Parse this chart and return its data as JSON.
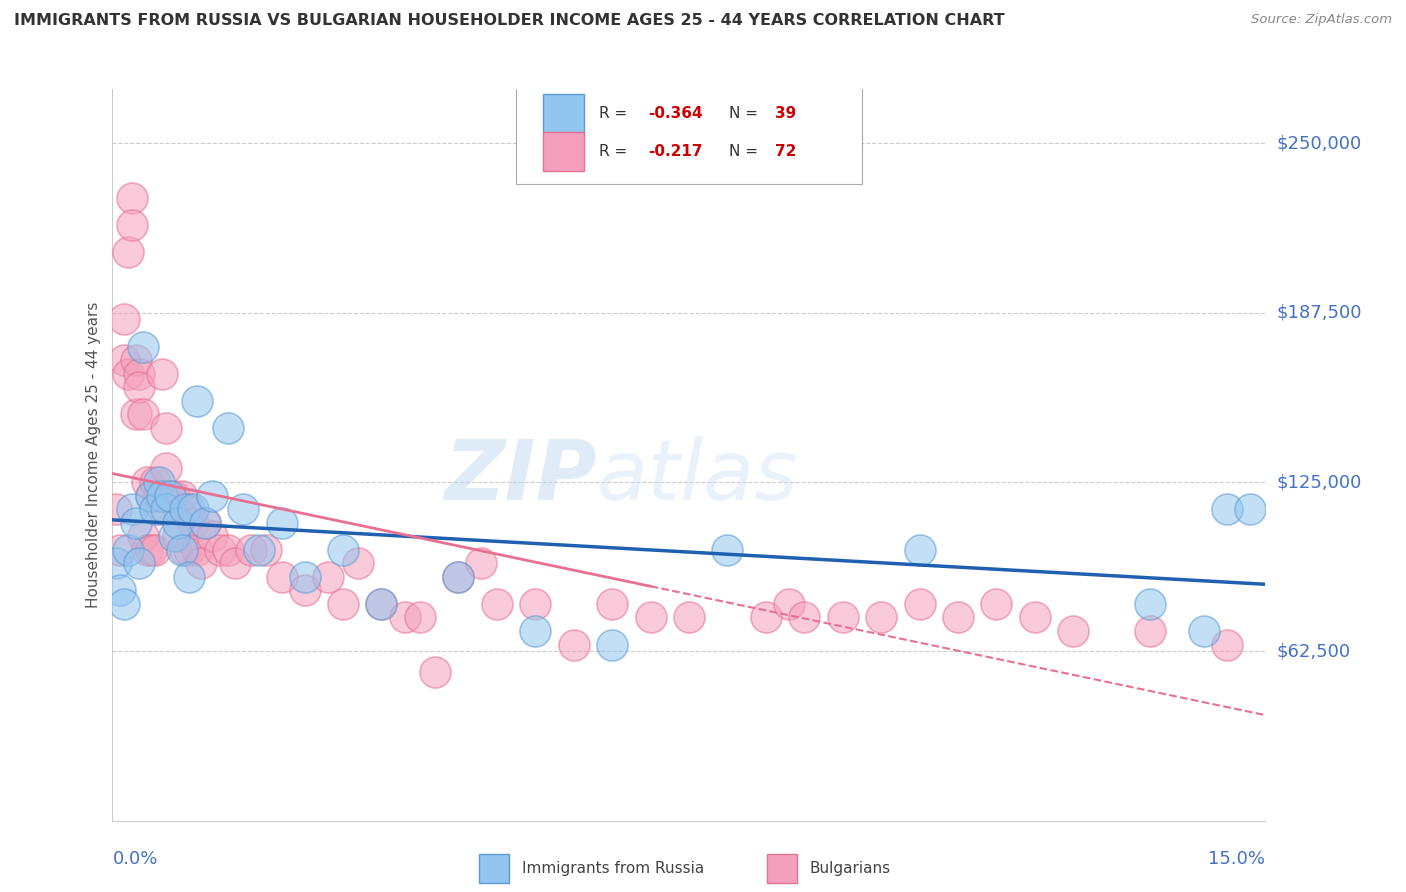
{
  "title": "IMMIGRANTS FROM RUSSIA VS BULGARIAN HOUSEHOLDER INCOME AGES 25 - 44 YEARS CORRELATION CHART",
  "source": "Source: ZipAtlas.com",
  "ylabel": "Householder Income Ages 25 - 44 years",
  "xlim": [
    0.0,
    15.0
  ],
  "ylim": [
    0,
    270000
  ],
  "yticks": [
    62500,
    125000,
    187500,
    250000
  ],
  "ytick_labels": [
    "$62,500",
    "$125,000",
    "$187,500",
    "$250,000"
  ],
  "watermark_zip": "ZIP",
  "watermark_atlas": "atlas",
  "legend_r1": "R = ",
  "legend_v1": "-0.364",
  "legend_n1_label": "N = ",
  "legend_n1": "39",
  "legend_r2": "R = ",
  "legend_v2": "-0.217",
  "legend_n2_label": "N = ",
  "legend_n2": "72",
  "color_russia": "#92C5F0",
  "color_bulgarian": "#F4A0BC",
  "color_russia_edge": "#5B9BD5",
  "color_bulgarian_edge": "#E87090",
  "color_russia_line": "#2060B0",
  "color_bulgarian_line": "#E87090",
  "background_color": "#FFFFFF",
  "grid_color": "#CCCCCC",
  "axis_color": "#4472C4",
  "title_color": "#333333",
  "source_color": "#888888",
  "russia_x": [
    0.05,
    0.1,
    0.15,
    0.2,
    0.25,
    0.3,
    0.35,
    0.4,
    0.5,
    0.55,
    0.6,
    0.65,
    0.7,
    0.75,
    0.8,
    0.85,
    0.9,
    0.95,
    1.0,
    1.05,
    1.1,
    1.2,
    1.3,
    1.5,
    1.7,
    1.9,
    2.2,
    2.5,
    3.0,
    3.5,
    4.5,
    5.5,
    6.5,
    8.0,
    10.5,
    13.5,
    14.2,
    14.5,
    14.8
  ],
  "russia_y": [
    95000,
    85000,
    80000,
    100000,
    115000,
    110000,
    95000,
    175000,
    120000,
    115000,
    125000,
    120000,
    115000,
    120000,
    105000,
    110000,
    100000,
    115000,
    90000,
    115000,
    155000,
    110000,
    120000,
    145000,
    115000,
    100000,
    110000,
    90000,
    100000,
    80000,
    90000,
    70000,
    65000,
    100000,
    100000,
    80000,
    70000,
    115000,
    115000
  ],
  "bulgarian_x": [
    0.05,
    0.1,
    0.15,
    0.15,
    0.2,
    0.2,
    0.25,
    0.25,
    0.3,
    0.3,
    0.35,
    0.35,
    0.4,
    0.4,
    0.45,
    0.45,
    0.5,
    0.5,
    0.55,
    0.55,
    0.6,
    0.6,
    0.65,
    0.7,
    0.7,
    0.75,
    0.8,
    0.85,
    0.85,
    0.9,
    0.95,
    1.0,
    1.0,
    1.05,
    1.1,
    1.15,
    1.2,
    1.3,
    1.4,
    1.5,
    1.6,
    1.8,
    2.0,
    2.2,
    2.5,
    2.8,
    3.0,
    3.2,
    3.5,
    3.8,
    4.0,
    4.2,
    4.5,
    4.8,
    5.0,
    5.5,
    6.0,
    6.5,
    7.0,
    7.5,
    8.5,
    8.8,
    9.0,
    9.5,
    10.0,
    10.5,
    11.0,
    11.5,
    12.0,
    12.5,
    13.5,
    14.5
  ],
  "bulgarian_y": [
    115000,
    100000,
    185000,
    170000,
    165000,
    210000,
    230000,
    220000,
    170000,
    150000,
    165000,
    160000,
    150000,
    105000,
    125000,
    100000,
    120000,
    100000,
    125000,
    100000,
    120000,
    115000,
    165000,
    145000,
    130000,
    120000,
    120000,
    115000,
    105000,
    120000,
    100000,
    115000,
    100000,
    110000,
    100000,
    95000,
    110000,
    105000,
    100000,
    100000,
    95000,
    100000,
    100000,
    90000,
    85000,
    90000,
    80000,
    95000,
    80000,
    75000,
    75000,
    55000,
    90000,
    95000,
    80000,
    80000,
    65000,
    80000,
    75000,
    75000,
    75000,
    80000,
    75000,
    75000,
    75000,
    80000,
    75000,
    80000,
    75000,
    70000,
    70000,
    65000
  ]
}
